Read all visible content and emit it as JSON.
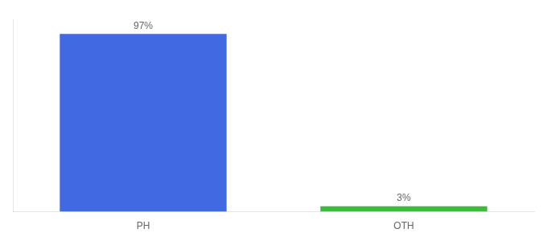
{
  "chart_data": {
    "type": "bar",
    "categories": [
      "PH",
      "OTH"
    ],
    "values": [
      97,
      3
    ],
    "value_labels": [
      "97%",
      "3%"
    ],
    "data_labels": true,
    "colors": [
      "#4169e1",
      "#3dbb3d"
    ],
    "ylim": [
      0,
      105
    ],
    "tick_labels": "x",
    "grid": false
  }
}
